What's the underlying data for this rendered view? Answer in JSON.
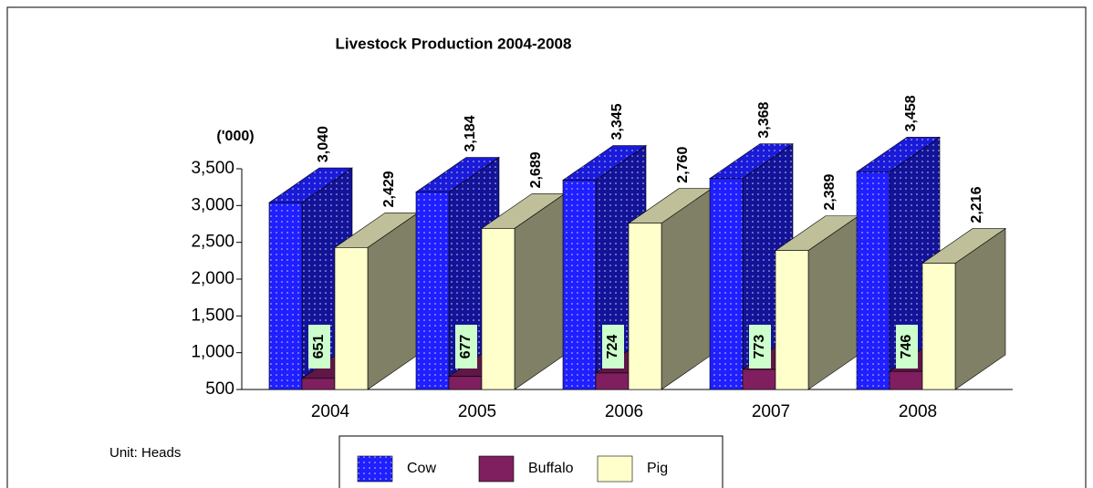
{
  "chart_data": {
    "type": "bar3d",
    "title": "Livestock Production 2004-2008",
    "unit_label": "('000)",
    "note": "Unit: Heads",
    "categories": [
      "2004",
      "2005",
      "2006",
      "2007",
      "2008"
    ],
    "series": [
      {
        "name": "Cow",
        "color": "#1f1fff",
        "values": [
          3040,
          3184,
          3345,
          3368,
          3458
        ],
        "value_labels": [
          "3,040",
          "3,184",
          "3,345",
          "3,368",
          "3,458"
        ]
      },
      {
        "name": "Buffalo",
        "color": "#7f1f5f",
        "values": [
          651,
          677,
          724,
          773,
          746
        ]
      },
      {
        "name": "Pig",
        "color": "#ffffcc",
        "values": [
          2429,
          2689,
          2760,
          2389,
          2216
        ],
        "value_labels": [
          "2,429",
          "2,689",
          "2,760",
          "2,389",
          "2,216"
        ]
      }
    ],
    "ylim": [
      500,
      3500
    ],
    "yticks": [
      500,
      {
        "value": 1000,
        "label": "1,000"
      },
      {
        "value": 1500,
        "label": "1,500"
      },
      {
        "value": 2000,
        "label": "2,000"
      },
      {
        "value": 2500,
        "label": "2,500"
      },
      {
        "value": 3000,
        "label": "3,000"
      },
      {
        "value": 3500,
        "label": "3,500"
      }
    ]
  }
}
